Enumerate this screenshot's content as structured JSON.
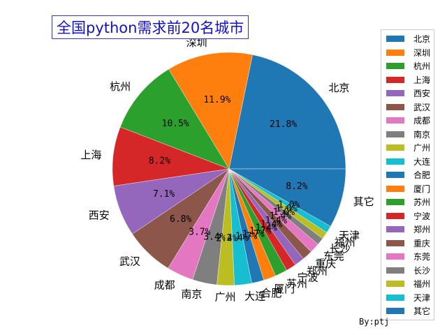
{
  "chart_data": {
    "type": "pie",
    "title": "全国python需求前20名城市",
    "labels": [
      "北京",
      "深圳",
      "杭州",
      "上海",
      "西安",
      "武汉",
      "成都",
      "南京",
      "广州",
      "大连",
      "合肥",
      "厦门",
      "苏州",
      "宁波",
      "郑州",
      "重庆",
      "东莞",
      "长沙",
      "福州",
      "天津",
      "其它"
    ],
    "values": [
      21.8,
      11.9,
      10.5,
      8.2,
      7.1,
      6.8,
      3.7,
      3.4,
      2.4,
      2.4,
      1.7,
      1.7,
      1.7,
      1.4,
      1.4,
      1.4,
      1.4,
      1.0,
      1.0,
      1.0,
      8.2
    ],
    "value_labels": [
      "21.8%",
      "11.9%",
      "10.5%",
      "8.2%",
      "7.1%",
      "6.8%",
      "3.7%",
      "3.4%",
      "2.4%",
      "2.4%",
      "1.7%",
      "1.7%",
      "1.7%",
      "1.4%",
      "1.4%",
      "1.4%",
      "1.4%",
      "1.0%",
      "1.0%",
      "1.0%",
      "8.2%"
    ],
    "colors": [
      "#1f77b4",
      "#ff7f0e",
      "#2ca02c",
      "#d62728",
      "#9467bd",
      "#8c564b",
      "#e377c2",
      "#7f7f7f",
      "#bcbd22",
      "#17becf",
      "#1f77b4",
      "#ff7f0e",
      "#2ca02c",
      "#d62728",
      "#9467bd",
      "#8c564b",
      "#e377c2",
      "#7f7f7f",
      "#bcbd22",
      "#17becf",
      "#1f77b4"
    ],
    "start_angle_deg": 0,
    "direction": "counterclockwise",
    "legend_placement": "right"
  },
  "footer": "By:ptj"
}
